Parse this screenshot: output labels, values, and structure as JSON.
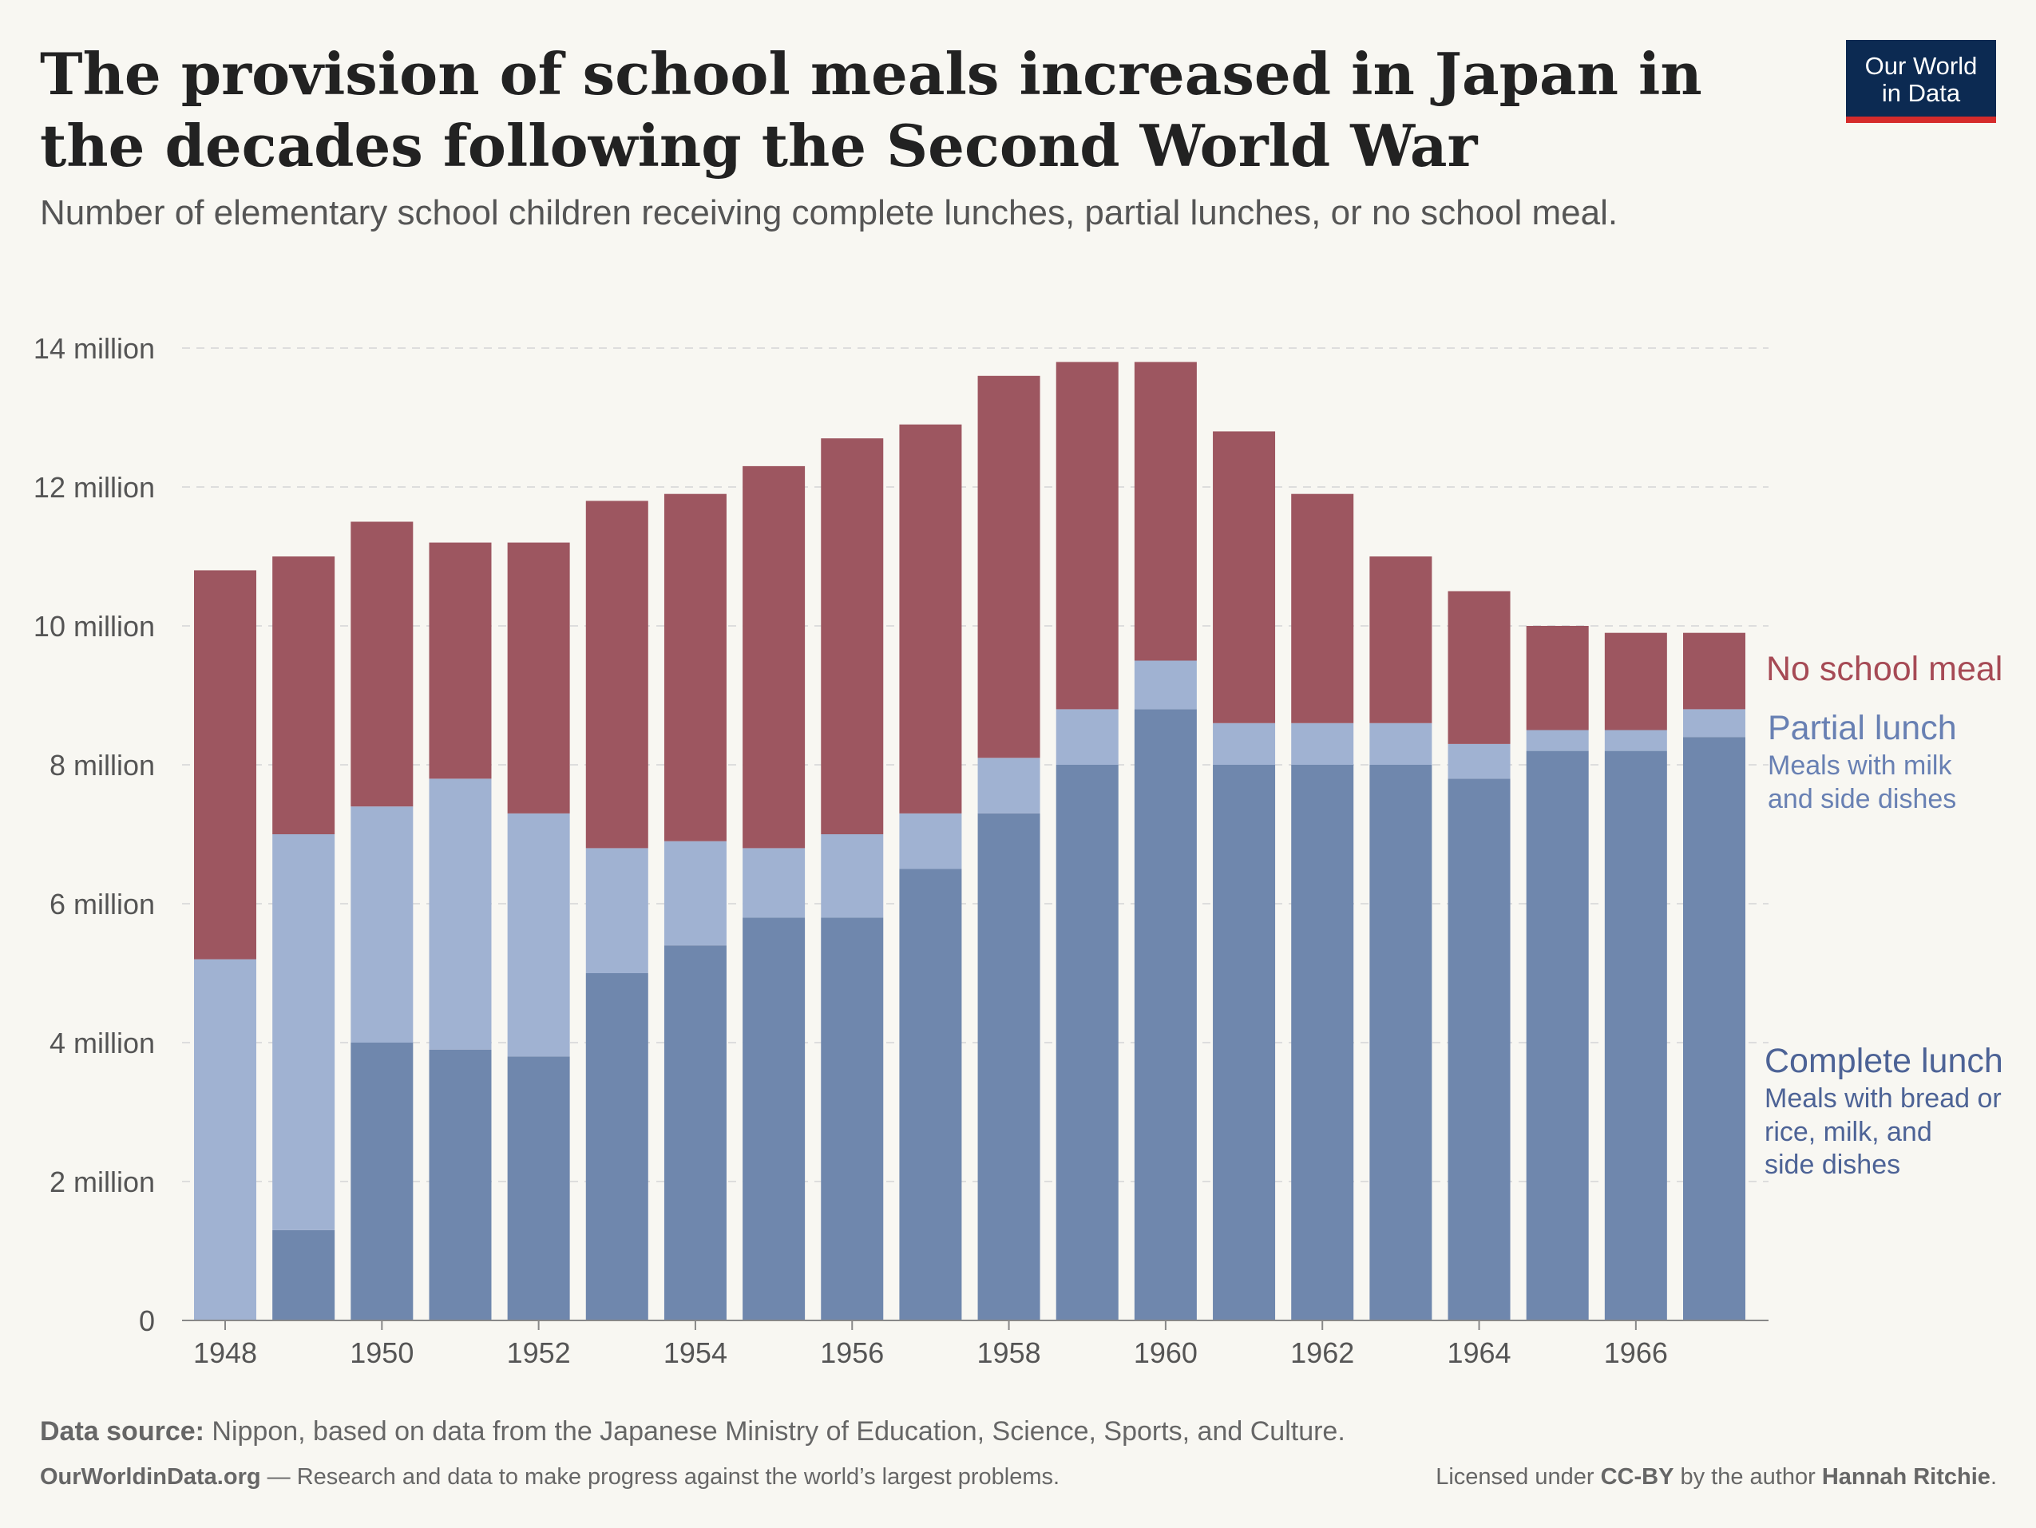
{
  "header": {
    "title": "The provision of school meals increased in Japan in the decades following the Second World War",
    "subtitle": "Number of elementary school children receiving complete lunches, partial lunches, or no school meal."
  },
  "logo": {
    "line1": "Our World",
    "line2": "in Data"
  },
  "footer": {
    "source_label": "Data source:",
    "source_text": " Nippon, based on data from the Japanese Ministry of Education, Science, Sports, and Culture.",
    "site": "OurWorldinData.org",
    "site_tagline": " — Research and data to make progress against the world’s largest problems.",
    "license_prefix": "Licensed under ",
    "license": "CC-BY",
    "license_mid": " by the author ",
    "author": "Hannah Ritchie",
    "license_end": "."
  },
  "colors": {
    "complete": "#6f87ad",
    "partial": "#a0b2d2",
    "none": "#9d5660",
    "none_label": "#a64a55",
    "partial_label": "#6880b3",
    "complete_label": "#4d6396",
    "grid": "#dddddd",
    "tick": "#555555"
  },
  "chart_data": {
    "type": "bar",
    "stacked": true,
    "categories": [
      "1948",
      "1949",
      "1950",
      "1951",
      "1952",
      "1953",
      "1954",
      "1955",
      "1956",
      "1957",
      "1958",
      "1959",
      "1960",
      "1961",
      "1962",
      "1963",
      "1964",
      "1965",
      "1966",
      "1967"
    ],
    "series": [
      {
        "name": "Complete lunch",
        "description": "Meals with bread or rice, milk, and side dishes",
        "values": [
          0,
          1.3,
          4.0,
          3.9,
          3.8,
          5.0,
          5.4,
          5.8,
          5.8,
          6.5,
          7.3,
          8.0,
          8.8,
          8.0,
          8.0,
          8.0,
          7.8,
          8.2,
          8.2,
          8.4
        ]
      },
      {
        "name": "Partial lunch",
        "description": "Meals with milk and side dishes",
        "values": [
          5.2,
          5.7,
          3.4,
          3.9,
          3.5,
          1.8,
          1.5,
          1.0,
          1.2,
          0.8,
          0.8,
          0.8,
          0.7,
          0.6,
          0.6,
          0.6,
          0.5,
          0.3,
          0.3,
          0.4
        ]
      },
      {
        "name": "No school meal",
        "description": "",
        "values": [
          5.6,
          4.0,
          4.1,
          3.4,
          3.9,
          5.0,
          5.0,
          5.5,
          5.7,
          5.6,
          5.5,
          5.0,
          4.3,
          4.2,
          3.3,
          2.4,
          2.2,
          1.5,
          1.4,
          1.1
        ]
      }
    ],
    "unit": "million",
    "ylim": [
      0,
      14
    ],
    "yticks": [
      {
        "value": 0,
        "label": "0"
      },
      {
        "value": 2,
        "label": "2 million"
      },
      {
        "value": 4,
        "label": "4 million"
      },
      {
        "value": 6,
        "label": "6 million"
      },
      {
        "value": 8,
        "label": "8 million"
      },
      {
        "value": 10,
        "label": "10 million"
      },
      {
        "value": 12,
        "label": "12 million"
      },
      {
        "value": 14,
        "label": "14 million"
      }
    ],
    "xtick_labels": [
      "1948",
      "1950",
      "1952",
      "1954",
      "1956",
      "1958",
      "1960",
      "1962",
      "1964",
      "1966"
    ],
    "grid": "horizontal dashed",
    "legend_placement": "right, inline"
  }
}
